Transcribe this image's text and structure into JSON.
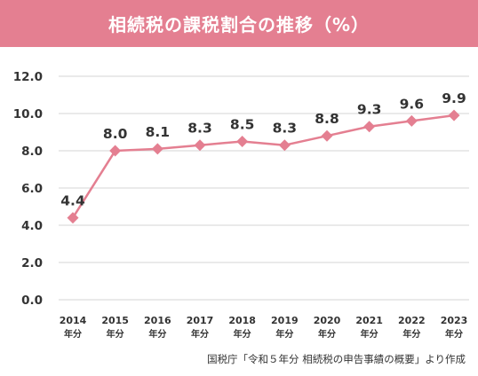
{
  "header": {
    "title": "相続税の課税割合の推移（%）"
  },
  "footer": {
    "source": "国税庁「令和５年分 相続税の申告事績の概要」より作成"
  },
  "colors": {
    "banner": "#e47f91",
    "line": "#e47f91",
    "grid": "#d6d6d6",
    "text": "#333333"
  },
  "chart_data": {
    "type": "line",
    "title": "相続税の課税割合の推移（%）",
    "categories": [
      "2014",
      "2015",
      "2016",
      "2017",
      "2018",
      "2019",
      "2020",
      "2021",
      "2022",
      "2023"
    ],
    "category_suffix": "年分",
    "values": [
      4.4,
      8.0,
      8.1,
      8.3,
      8.5,
      8.3,
      8.8,
      9.3,
      9.6,
      9.9
    ],
    "data_labels": [
      "4.4",
      "8.0",
      "8.1",
      "8.3",
      "8.5",
      "8.3",
      "8.8",
      "9.3",
      "9.6",
      "9.9"
    ],
    "y_ticks": [
      "0.0",
      "2.0",
      "4.0",
      "6.0",
      "8.0",
      "10.0",
      "12.0"
    ],
    "ylim": [
      0,
      12
    ],
    "grid": true,
    "marker": "diamond",
    "legend": "none"
  }
}
